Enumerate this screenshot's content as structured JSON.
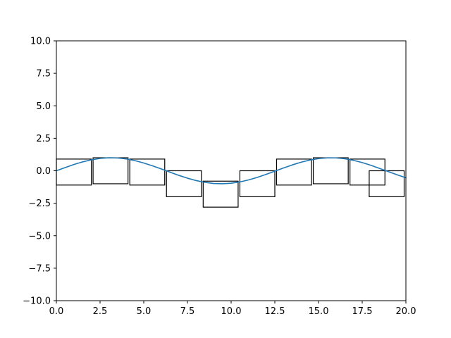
{
  "chart_data": {
    "type": "line",
    "title": "",
    "xlabel": "",
    "ylabel": "",
    "xlim": [
      0,
      20
    ],
    "ylim": [
      -10,
      10
    ],
    "grid": false,
    "x_ticks": [
      0,
      2.5,
      5,
      7.5,
      10,
      12.5,
      15,
      17.5,
      20
    ],
    "x_tick_labels": [
      "0.0",
      "2.5",
      "5.0",
      "7.5",
      "10.0",
      "12.5",
      "15.0",
      "17.5",
      "20.0"
    ],
    "y_ticks": [
      -10,
      -7.5,
      -5,
      -2.5,
      0,
      2.5,
      5,
      7.5,
      10
    ],
    "y_tick_labels": [
      "−10.0",
      "−7.5",
      "−5.0",
      "−2.5",
      "0.0",
      "2.5",
      "5.0",
      "7.5",
      "10.0"
    ],
    "series": [
      {
        "color": "#1f77b4",
        "x": [
          0,
          0.5,
          1,
          1.5,
          2,
          2.5,
          3,
          3.5,
          4,
          4.5,
          5,
          5.5,
          6,
          6.5,
          7,
          7.5,
          8,
          8.5,
          9,
          9.5,
          10,
          10.5,
          11,
          11.5,
          12,
          12.5,
          13,
          13.5,
          14,
          14.5,
          15,
          15.5,
          16,
          16.5,
          17,
          17.5,
          18,
          18.5,
          19,
          19.5,
          20
        ],
        "y": [
          0,
          0.247,
          0.479,
          0.682,
          0.841,
          0.949,
          0.997,
          0.984,
          0.909,
          0.778,
          0.598,
          0.382,
          0.141,
          -0.108,
          -0.351,
          -0.572,
          -0.757,
          -0.895,
          -0.978,
          -1.0,
          -0.959,
          -0.859,
          -0.706,
          -0.508,
          -0.279,
          -0.033,
          0.215,
          0.45,
          0.657,
          0.823,
          0.938,
          0.994,
          0.989,
          0.924,
          0.801,
          0.629,
          0.418,
          0.179,
          -0.07,
          -0.313,
          -0.544
        ]
      }
    ],
    "rectangles": [
      {
        "x": 0.0,
        "y": -1.1,
        "width": 2.0,
        "height": 2.0
      },
      {
        "x": 2.1,
        "y": -1.0,
        "width": 2.0,
        "height": 2.0
      },
      {
        "x": 4.2,
        "y": -1.1,
        "width": 2.0,
        "height": 2.0
      },
      {
        "x": 6.3,
        "y": -2.0,
        "width": 2.0,
        "height": 2.0
      },
      {
        "x": 8.4,
        "y": -2.8,
        "width": 2.0,
        "height": 2.0
      },
      {
        "x": 10.5,
        "y": -2.0,
        "width": 2.0,
        "height": 2.0
      },
      {
        "x": 12.6,
        "y": -1.1,
        "width": 2.0,
        "height": 2.0
      },
      {
        "x": 14.7,
        "y": -1.0,
        "width": 2.0,
        "height": 2.0
      },
      {
        "x": 16.8,
        "y": -1.1,
        "width": 2.0,
        "height": 2.0
      },
      {
        "x": 17.9,
        "y": -2.0,
        "width": 2.0,
        "height": 2.0
      }
    ]
  }
}
